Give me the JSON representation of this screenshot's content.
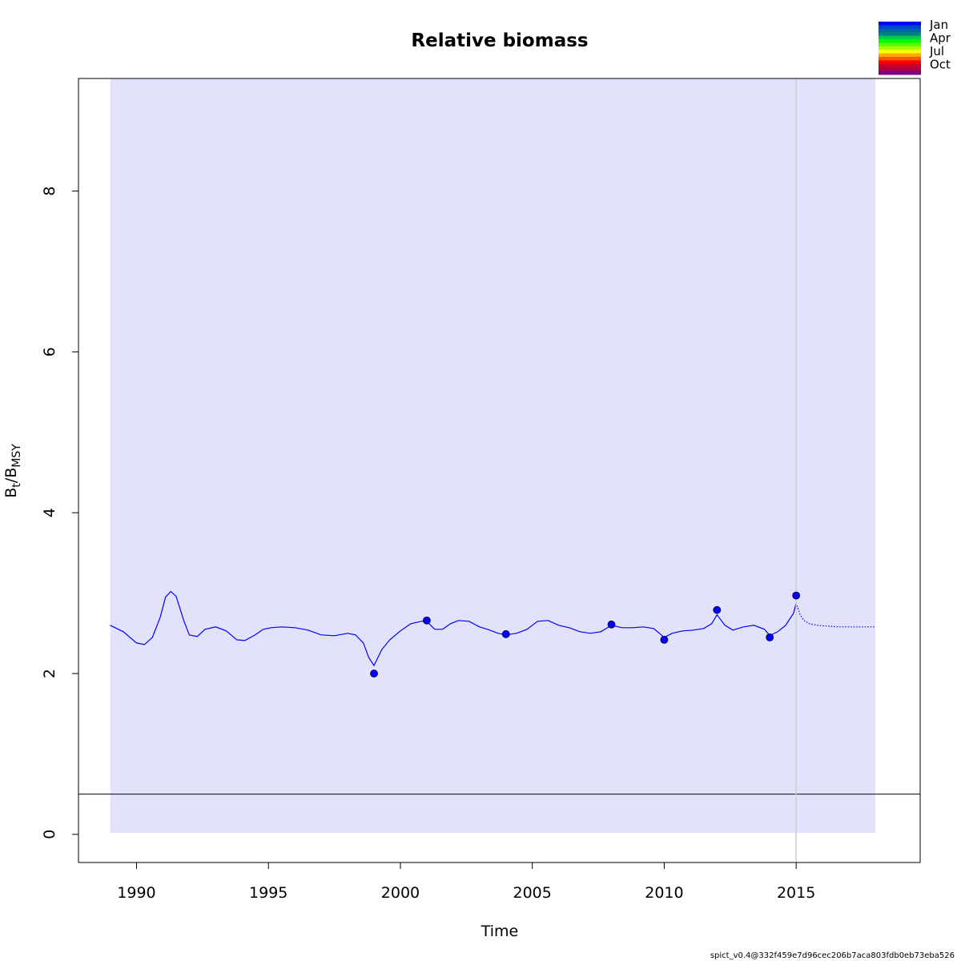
{
  "chart_data": {
    "type": "line",
    "title": "Relative biomass",
    "xlabel": "Time",
    "ylabel_main": "B",
    "ylabel_sub1": "t",
    "ylabel_sep": "/B",
    "ylabel_sub2": "MSY",
    "xlim": [
      1987.8,
      2019.7
    ],
    "ylim": [
      -0.35,
      9.4
    ],
    "xticks": [
      1990,
      1995,
      2000,
      2005,
      2010,
      2015
    ],
    "yticks": [
      0,
      2,
      4,
      6,
      8
    ],
    "ci_band": {
      "x_start": 1989,
      "x_end": 2018,
      "lower": 0.02,
      "upper": 9.4,
      "color": "#e2e2fc"
    },
    "reference_line_y": 0.5,
    "vertical_line_x": 2015,
    "series": [
      {
        "kind": "estimate",
        "x": [
          1989.0,
          1989.5,
          1990.0,
          1990.3,
          1990.6,
          1990.9,
          1991.1,
          1991.3,
          1991.5,
          1991.8,
          1992.0,
          1992.3,
          1992.6,
          1993.0,
          1993.4,
          1993.8,
          1994.1,
          1994.5,
          1994.8,
          1995.1,
          1995.5,
          1996.0,
          1996.5,
          1997.0,
          1997.5,
          1998.0,
          1998.3,
          1998.6,
          1998.8,
          1999.0,
          1999.3,
          1999.6,
          2000.0,
          2000.4,
          2000.8,
          2001.0,
          2001.3,
          2001.6,
          2001.9,
          2002.2,
          2002.6,
          2003.0,
          2003.3,
          2003.7,
          2004.0,
          2004.4,
          2004.8,
          2005.2,
          2005.6,
          2006.0,
          2006.4,
          2006.8,
          2007.2,
          2007.6,
          2008.0,
          2008.4,
          2008.8,
          2009.2,
          2009.6,
          2010.0,
          2010.3,
          2010.7,
          2011.1,
          2011.5,
          2011.8,
          2012.0,
          2012.3,
          2012.6,
          2013.0,
          2013.4,
          2013.8,
          2014.0,
          2014.3,
          2014.6,
          2014.9,
          2015.0
        ],
        "y": [
          2.6,
          2.52,
          2.38,
          2.36,
          2.45,
          2.7,
          2.95,
          3.02,
          2.96,
          2.65,
          2.48,
          2.46,
          2.55,
          2.58,
          2.53,
          2.42,
          2.41,
          2.48,
          2.55,
          2.57,
          2.58,
          2.57,
          2.54,
          2.48,
          2.47,
          2.5,
          2.48,
          2.38,
          2.2,
          2.1,
          2.3,
          2.42,
          2.53,
          2.62,
          2.65,
          2.65,
          2.55,
          2.55,
          2.62,
          2.66,
          2.65,
          2.58,
          2.55,
          2.5,
          2.48,
          2.5,
          2.55,
          2.65,
          2.66,
          2.6,
          2.57,
          2.52,
          2.5,
          2.52,
          2.6,
          2.57,
          2.57,
          2.58,
          2.56,
          2.45,
          2.5,
          2.53,
          2.54,
          2.56,
          2.62,
          2.73,
          2.6,
          2.54,
          2.58,
          2.6,
          2.55,
          2.47,
          2.52,
          2.6,
          2.75,
          2.88
        ]
      },
      {
        "kind": "prediction",
        "x": [
          2015.0,
          2015.15,
          2015.3,
          2015.5,
          2015.8,
          2016.2,
          2016.6,
          2017.0,
          2017.5,
          2018.0
        ],
        "y": [
          2.88,
          2.73,
          2.66,
          2.62,
          2.6,
          2.59,
          2.58,
          2.58,
          2.58,
          2.58
        ]
      },
      {
        "kind": "observations",
        "x": [
          1999,
          2001,
          2004,
          2008,
          2010,
          2012,
          2014,
          2015
        ],
        "y": [
          2.0,
          2.66,
          2.49,
          2.61,
          2.42,
          2.79,
          2.45,
          2.97
        ]
      }
    ],
    "legend": {
      "labels": [
        "Jan",
        "Apr",
        "Jul",
        "Oct"
      ],
      "colors": [
        "#0000ff",
        "#0044cc",
        "#0066aa",
        "#008080",
        "#00cc44",
        "#00ff00",
        "#55ff00",
        "#aaff00",
        "#ffff00",
        "#ffaa00",
        "#ff5500",
        "#ff0000",
        "#cc0022",
        "#aa0044",
        "#800080"
      ]
    },
    "line_color": "#0000ff",
    "footer": "spict_v0.4@332f459e7d96cec206b7aca803fdb0eb73eba526"
  }
}
